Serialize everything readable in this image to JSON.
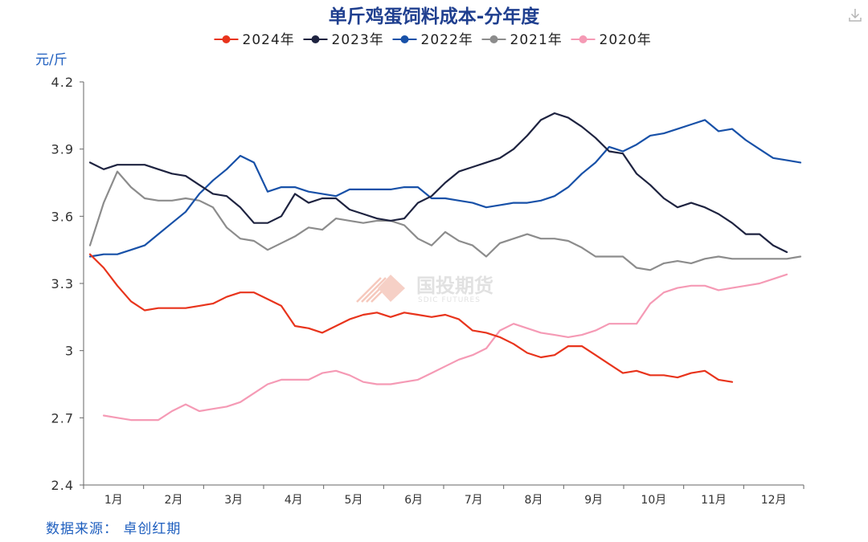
{
  "chart_data": {
    "type": "line",
    "title": "单斤鸡蛋饲料成本-分年度",
    "ylabel": "元/斤",
    "ylim": [
      2.4,
      4.2
    ],
    "yticks": [
      "4.2",
      "3.9",
      "3.6",
      "3.3",
      "3",
      "2.7",
      "2.4"
    ],
    "ytick_values": [
      4.2,
      3.9,
      3.6,
      3.3,
      3.0,
      2.7,
      2.4
    ],
    "x_months": [
      "1月",
      "2月",
      "3月",
      "4月",
      "5月",
      "6月",
      "7月",
      "8月",
      "9月",
      "10月",
      "11月",
      "12月"
    ],
    "x_range": [
      1,
      53
    ],
    "legend_position": "top",
    "grid": false,
    "series": [
      {
        "name": "2024年",
        "color": "#e8341c",
        "x": [
          1,
          2,
          3,
          4,
          5,
          6,
          7,
          8,
          9,
          10,
          11,
          12,
          13,
          14,
          15,
          16,
          17,
          18,
          19,
          20,
          21,
          22,
          23,
          24,
          25,
          26,
          27,
          28,
          29,
          30,
          31,
          32,
          33,
          34,
          35,
          36,
          37,
          38,
          39,
          40,
          41,
          42,
          43,
          44,
          45,
          46,
          47,
          48
        ],
        "y": [
          3.43,
          3.37,
          3.29,
          3.22,
          3.18,
          3.19,
          3.19,
          3.19,
          3.2,
          3.21,
          3.24,
          3.26,
          3.26,
          3.23,
          3.2,
          3.11,
          3.1,
          3.08,
          3.11,
          3.14,
          3.16,
          3.17,
          3.15,
          3.17,
          3.16,
          3.15,
          3.16,
          3.14,
          3.09,
          3.08,
          3.06,
          3.03,
          2.99,
          2.97,
          2.98,
          3.02,
          3.02,
          2.98,
          2.94,
          2.9,
          2.91,
          2.89,
          2.89,
          2.88,
          2.9,
          2.91,
          2.87,
          2.86
        ]
      },
      {
        "name": "2023年",
        "color": "#1e2340",
        "x": [
          1,
          2,
          3,
          4,
          5,
          6,
          7,
          8,
          9,
          10,
          11,
          12,
          13,
          14,
          15,
          16,
          17,
          18,
          19,
          20,
          21,
          22,
          23,
          24,
          25,
          26,
          27,
          28,
          29,
          30,
          31,
          32,
          33,
          34,
          35,
          36,
          37,
          38,
          39,
          40,
          41,
          42,
          43,
          44,
          45,
          46,
          47,
          48,
          49,
          50,
          51,
          52
        ],
        "y": [
          3.84,
          3.81,
          3.83,
          3.83,
          3.83,
          3.81,
          3.79,
          3.78,
          3.74,
          3.7,
          3.69,
          3.64,
          3.57,
          3.57,
          3.6,
          3.7,
          3.66,
          3.68,
          3.68,
          3.63,
          3.61,
          3.59,
          3.58,
          3.59,
          3.66,
          3.69,
          3.75,
          3.8,
          3.82,
          3.84,
          3.86,
          3.9,
          3.96,
          4.03,
          4.06,
          4.04,
          4.0,
          3.95,
          3.89,
          3.88,
          3.79,
          3.74,
          3.68,
          3.64,
          3.66,
          3.64,
          3.61,
          3.57,
          3.52,
          3.52,
          3.47,
          3.44
        ]
      },
      {
        "name": "2022年",
        "color": "#1851a8",
        "x": [
          1,
          2,
          3,
          4,
          5,
          6,
          7,
          8,
          9,
          10,
          11,
          12,
          13,
          14,
          15,
          16,
          17,
          18,
          19,
          20,
          21,
          22,
          23,
          24,
          25,
          26,
          27,
          28,
          29,
          30,
          31,
          32,
          33,
          34,
          35,
          36,
          37,
          38,
          39,
          40,
          41,
          42,
          43,
          44,
          45,
          46,
          47,
          48,
          49,
          50,
          51,
          52,
          53
        ],
        "y": [
          3.42,
          3.43,
          3.43,
          3.45,
          3.47,
          3.52,
          3.57,
          3.62,
          3.7,
          3.76,
          3.81,
          3.87,
          3.84,
          3.71,
          3.73,
          3.73,
          3.71,
          3.7,
          3.69,
          3.72,
          3.72,
          3.72,
          3.72,
          3.73,
          3.73,
          3.68,
          3.68,
          3.67,
          3.66,
          3.64,
          3.65,
          3.66,
          3.66,
          3.67,
          3.69,
          3.73,
          3.79,
          3.84,
          3.91,
          3.89,
          3.92,
          3.96,
          3.97,
          3.99,
          4.01,
          4.03,
          3.98,
          3.99,
          3.94,
          3.9,
          3.86,
          3.85,
          3.84
        ]
      },
      {
        "name": "2021年",
        "color": "#8c8c8c",
        "x": [
          1,
          2,
          3,
          4,
          5,
          6,
          7,
          8,
          9,
          10,
          11,
          12,
          13,
          14,
          15,
          16,
          17,
          18,
          19,
          20,
          21,
          22,
          23,
          24,
          25,
          26,
          27,
          28,
          29,
          30,
          31,
          32,
          33,
          34,
          35,
          36,
          37,
          38,
          39,
          40,
          41,
          42,
          43,
          44,
          45,
          46,
          47,
          48,
          49,
          50,
          51,
          52,
          53
        ],
        "y": [
          3.47,
          3.66,
          3.8,
          3.73,
          3.68,
          3.67,
          3.67,
          3.68,
          3.67,
          3.64,
          3.55,
          3.5,
          3.49,
          3.45,
          3.48,
          3.51,
          3.55,
          3.54,
          3.59,
          3.58,
          3.57,
          3.58,
          3.58,
          3.56,
          3.5,
          3.47,
          3.53,
          3.49,
          3.47,
          3.42,
          3.48,
          3.5,
          3.52,
          3.5,
          3.5,
          3.49,
          3.46,
          3.42,
          3.42,
          3.42,
          3.37,
          3.36,
          3.39,
          3.4,
          3.39,
          3.41,
          3.42,
          3.41,
          3.41,
          3.41,
          3.41,
          3.41,
          3.42
        ]
      },
      {
        "name": "2020年",
        "color": "#f59ab5",
        "x": [
          2,
          3,
          4,
          5,
          6,
          7,
          8,
          9,
          10,
          11,
          12,
          13,
          14,
          15,
          16,
          17,
          18,
          19,
          20,
          21,
          22,
          23,
          24,
          25,
          26,
          27,
          28,
          29,
          30,
          31,
          32,
          33,
          34,
          35,
          36,
          37,
          38,
          39,
          40,
          41,
          42,
          43,
          44,
          45,
          46,
          47,
          48,
          49,
          50,
          51,
          52
        ],
        "y": [
          2.71,
          2.7,
          2.69,
          2.69,
          2.69,
          2.73,
          2.76,
          2.73,
          2.74,
          2.75,
          2.77,
          2.81,
          2.85,
          2.87,
          2.87,
          2.87,
          2.9,
          2.91,
          2.89,
          2.86,
          2.85,
          2.85,
          2.86,
          2.87,
          2.9,
          2.93,
          2.96,
          2.98,
          3.01,
          3.09,
          3.12,
          3.1,
          3.08,
          3.07,
          3.06,
          3.07,
          3.09,
          3.12,
          3.12,
          3.12,
          3.21,
          3.26,
          3.28,
          3.29,
          3.29,
          3.27,
          3.28,
          3.29,
          3.3,
          3.32,
          3.34
        ]
      }
    ]
  },
  "watermark": {
    "name": "国投期货",
    "sub": "SDIC FUTURES"
  },
  "source": "数据来源： 卓创红期",
  "download_icon": "download-icon"
}
